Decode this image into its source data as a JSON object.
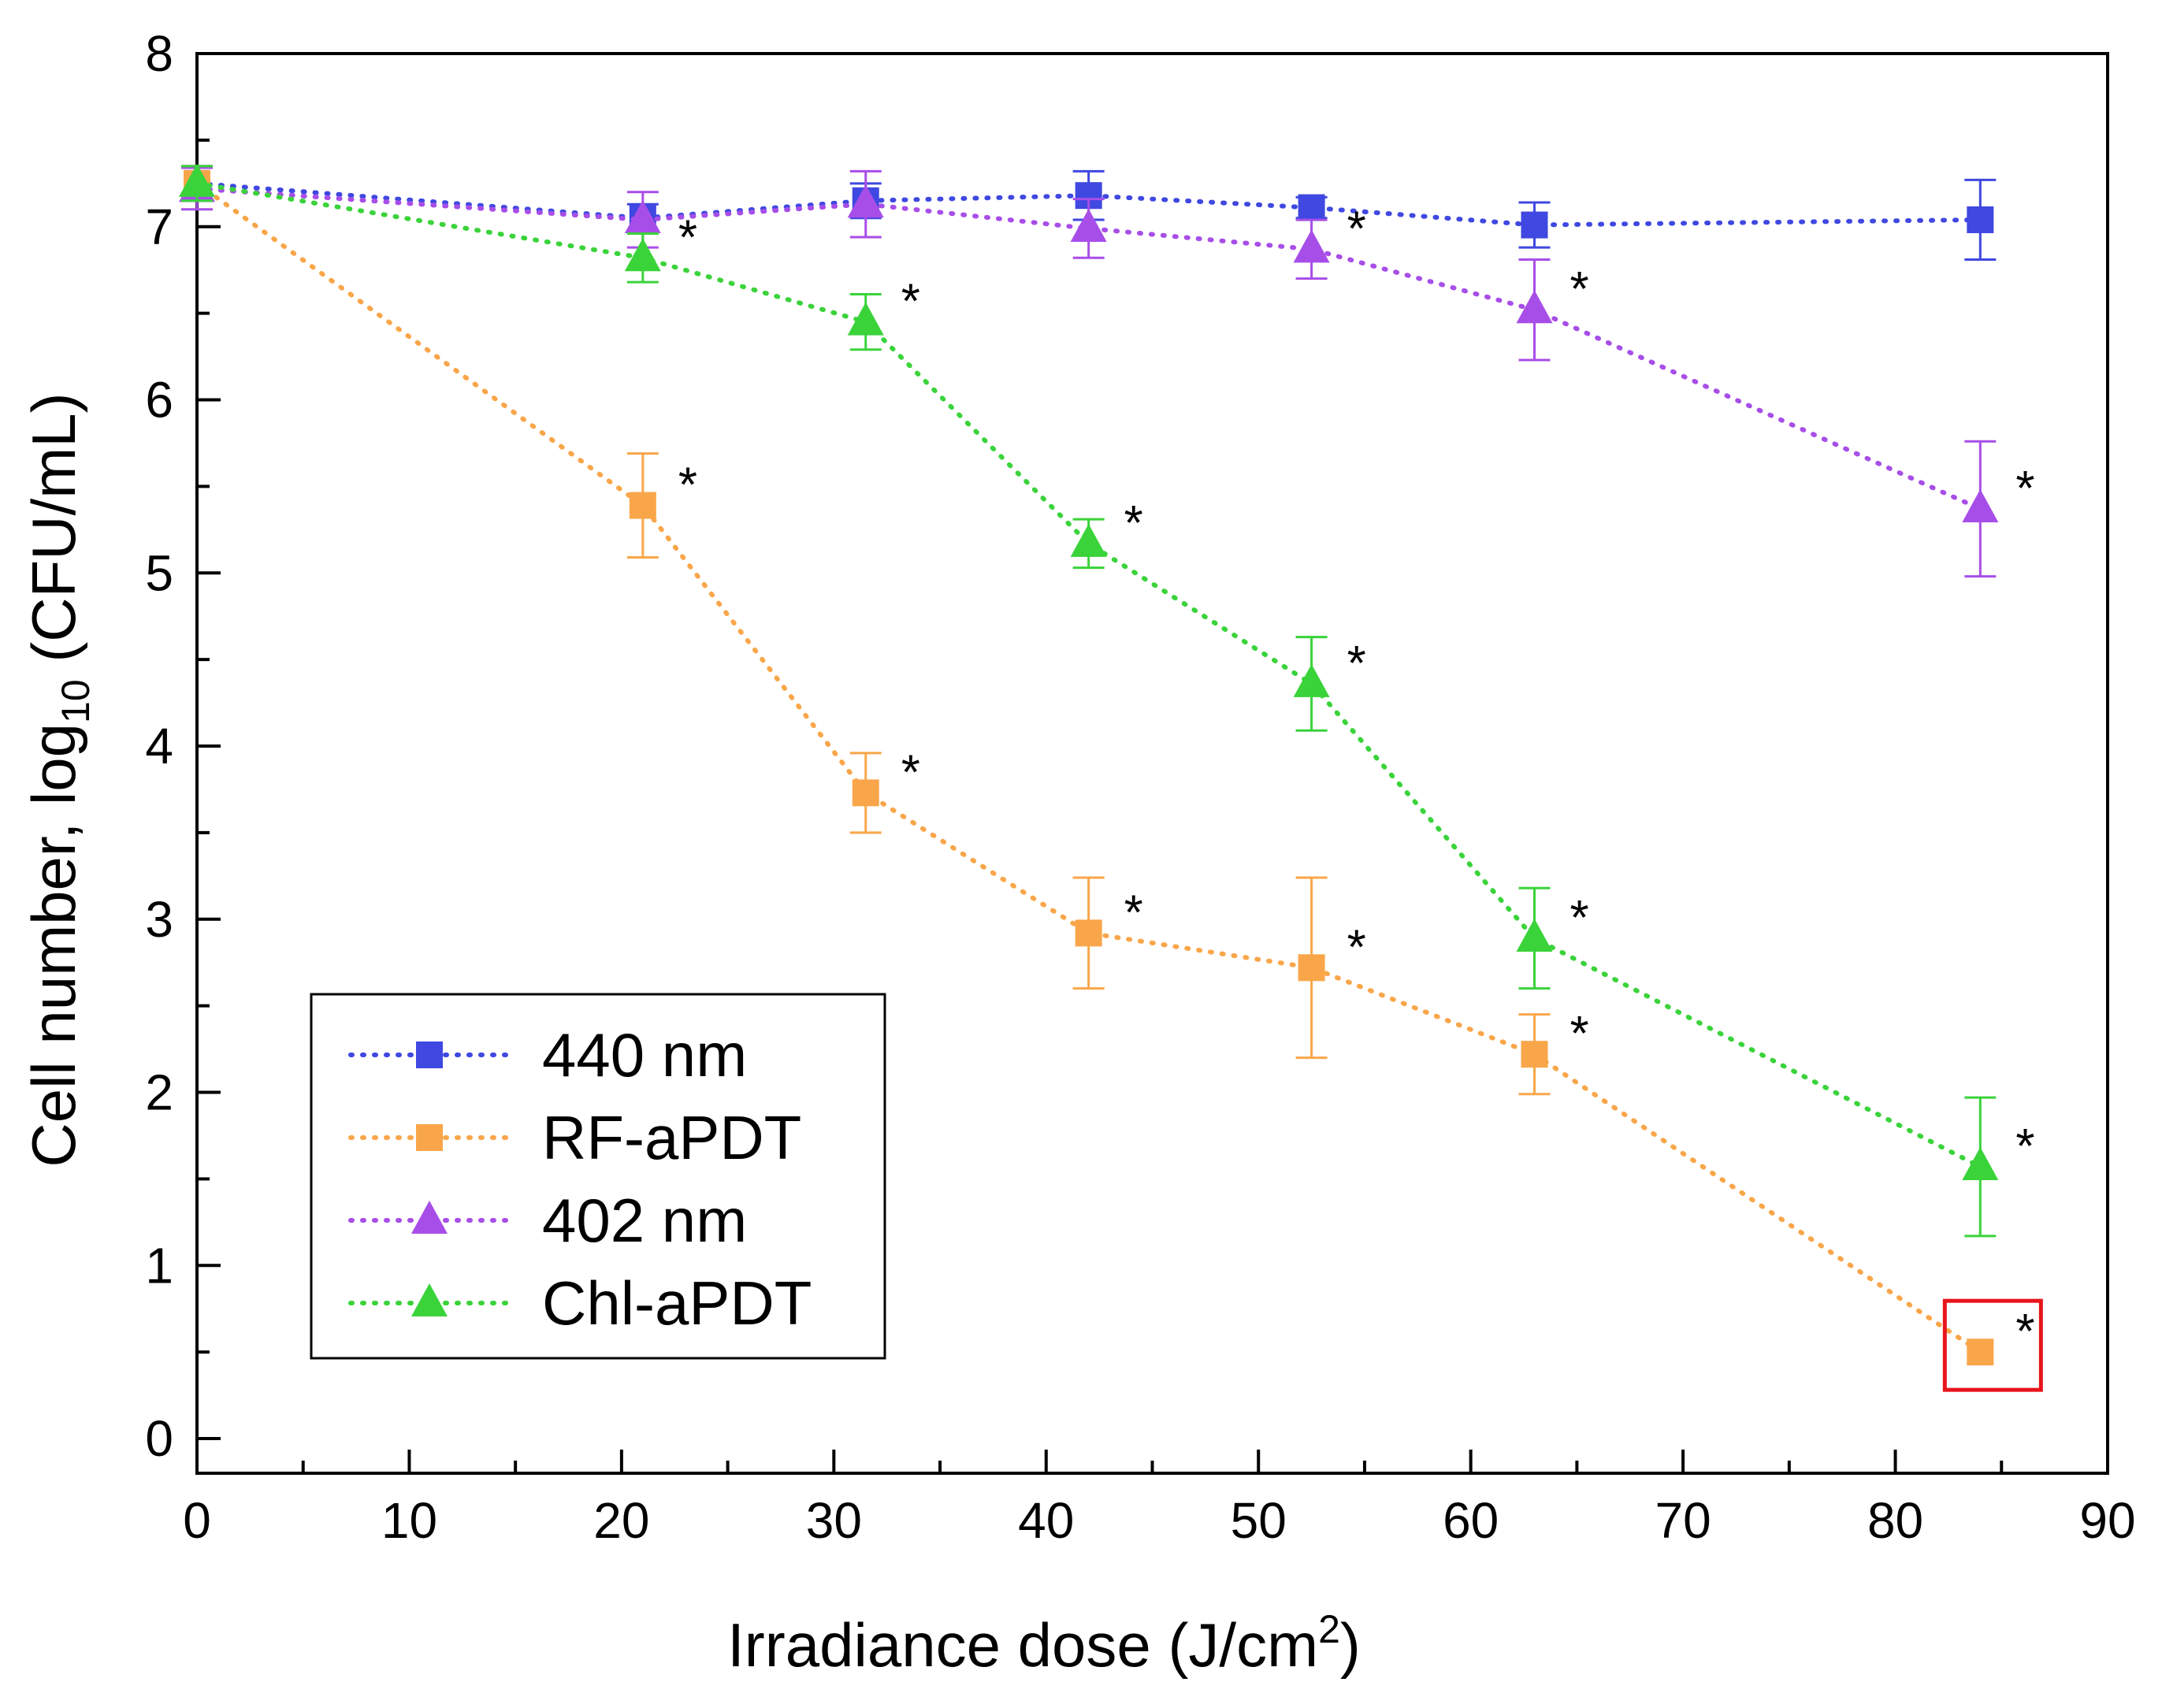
{
  "chart_data": {
    "type": "line",
    "title": "",
    "xlabel": "Irradiance dose (J/cm²)",
    "xlabel_main": "Irradiance dose (J/cm",
    "xlabel_sup": "2",
    "xlabel_end": ")",
    "ylabel": "Cell number, log10 (CFU/mL)",
    "ylabel_pre": "Cell number, log",
    "ylabel_sub": "10",
    "ylabel_post": " (CFU/mL)",
    "xlim": [
      0,
      90
    ],
    "ylim": [
      -0.2,
      8
    ],
    "x_ticks": [
      0,
      10,
      20,
      30,
      40,
      50,
      60,
      70,
      80,
      90
    ],
    "y_ticks": [
      0,
      1,
      2,
      3,
      4,
      5,
      6,
      7,
      8
    ],
    "x_tick_labels": [
      "0",
      "10",
      "20",
      "30",
      "40",
      "50",
      "60",
      "70",
      "80",
      "90"
    ],
    "y_tick_labels": [
      "0",
      "1",
      "2",
      "3",
      "4",
      "5",
      "6",
      "7",
      "8"
    ],
    "grid": false,
    "legend_position": "bottom-left",
    "significance_mark": "*",
    "highlight": {
      "series": "RF-aPDT",
      "x": 84,
      "color": "#e8141c"
    },
    "x": [
      0,
      21,
      31.5,
      42,
      52.5,
      63,
      84
    ],
    "series": [
      {
        "name": "440 nm",
        "color": "#3f48e0",
        "marker": "square",
        "values": [
          7.25,
          7.05,
          7.15,
          7.18,
          7.11,
          7.01,
          7.04
        ],
        "errors": [
          0.1,
          0.08,
          0.1,
          0.14,
          0.06,
          0.13,
          0.23
        ],
        "significant": [
          false,
          false,
          false,
          false,
          false,
          false,
          false
        ]
      },
      {
        "name": "RF-aPDT",
        "color": "#f9a64a",
        "marker": "square",
        "values": [
          7.25,
          5.39,
          3.73,
          2.92,
          2.72,
          2.22,
          0.5
        ],
        "errors": [
          0.1,
          0.3,
          0.23,
          0.32,
          0.52,
          0.23,
          0
        ],
        "significant": [
          false,
          true,
          true,
          true,
          true,
          true,
          true
        ]
      },
      {
        "name": "402 nm",
        "color": "#a84ee8",
        "marker": "triangle",
        "values": [
          7.22,
          7.04,
          7.13,
          6.99,
          6.87,
          6.52,
          5.37
        ],
        "errors": [
          0.12,
          0.16,
          0.19,
          0.17,
          0.17,
          0.29,
          0.39
        ],
        "significant": [
          false,
          false,
          false,
          false,
          true,
          true,
          true
        ]
      },
      {
        "name": "Chl-aPDT",
        "color": "#3ad33a",
        "marker": "triangle",
        "values": [
          7.25,
          6.82,
          6.45,
          5.17,
          4.36,
          2.89,
          1.57
        ],
        "errors": [
          0.1,
          0.14,
          0.16,
          0.14,
          0.27,
          0.29,
          0.4
        ],
        "significant": [
          false,
          true,
          true,
          true,
          true,
          true,
          true
        ]
      }
    ]
  }
}
